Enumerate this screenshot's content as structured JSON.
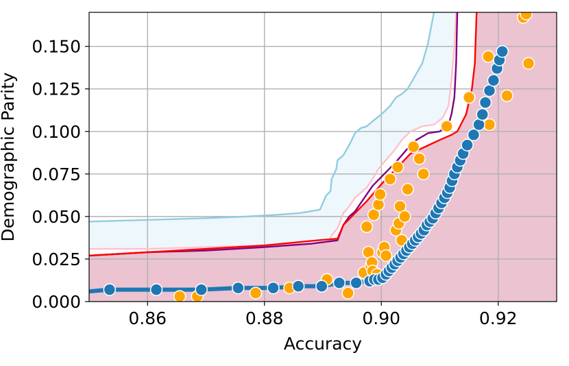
{
  "chart_data": {
    "type": "line",
    "title": "",
    "xlabel": "Accuracy",
    "ylabel": "Demographic Parity",
    "xlim": [
      0.85,
      0.93
    ],
    "ylim": [
      0.0,
      0.17
    ],
    "x_ticks": [
      0.86,
      0.88,
      0.9,
      0.92
    ],
    "x_tick_labels": [
      "0.86",
      "0.88",
      "0.90",
      "0.92"
    ],
    "y_ticks": [
      0.0,
      0.025,
      0.05,
      0.075,
      0.1,
      0.125,
      0.15
    ],
    "y_tick_labels": [
      "0.000",
      "0.025",
      "0.050",
      "0.075",
      "0.100",
      "0.125",
      "0.150"
    ],
    "grid": true,
    "legend": "none",
    "colors": {
      "pink_region": "#ebc3d1",
      "lightblue_region": "#eef7fb",
      "skyblue_line": "#8fcde0",
      "pink_line": "#ffc0cb",
      "purple_line": "#800080",
      "red_line": "#ff0000",
      "orange_points": "#ffa500",
      "blue_frontier": "#1f77b4"
    },
    "bands": [
      {
        "fill": "#eef7fb",
        "upper": [
          [
            0.85,
            0.047
          ],
          [
            0.86,
            0.048
          ],
          [
            0.87,
            0.049
          ],
          [
            0.877,
            0.05
          ],
          [
            0.882,
            0.051
          ],
          [
            0.886,
            0.052
          ],
          [
            0.8895,
            0.054
          ],
          [
            0.8905,
            0.062
          ],
          [
            0.8913,
            0.065
          ],
          [
            0.8915,
            0.072
          ],
          [
            0.8923,
            0.078
          ],
          [
            0.8925,
            0.083
          ],
          [
            0.8935,
            0.086
          ],
          [
            0.8945,
            0.092
          ],
          [
            0.8955,
            0.099
          ],
          [
            0.8965,
            0.102
          ],
          [
            0.8975,
            0.103
          ],
          [
            0.8985,
            0.106
          ],
          [
            0.9,
            0.11
          ],
          [
            0.9015,
            0.115
          ],
          [
            0.9025,
            0.12
          ],
          [
            0.9035,
            0.122
          ],
          [
            0.9045,
            0.125
          ],
          [
            0.9055,
            0.131
          ],
          [
            0.907,
            0.14
          ],
          [
            0.908,
            0.152
          ],
          [
            0.9085,
            0.161
          ],
          [
            0.909,
            0.17
          ]
        ],
        "lower": [
          [
            0.85,
            0.031
          ],
          [
            0.86,
            0.031
          ],
          [
            0.87,
            0.032
          ],
          [
            0.88,
            0.033
          ],
          [
            0.8885,
            0.034
          ],
          [
            0.891,
            0.035
          ],
          [
            0.8915,
            0.039
          ],
          [
            0.8925,
            0.043
          ],
          [
            0.8935,
            0.052
          ],
          [
            0.8945,
            0.056
          ],
          [
            0.8955,
            0.061
          ],
          [
            0.8965,
            0.064
          ],
          [
            0.8975,
            0.067
          ],
          [
            0.8985,
            0.072
          ],
          [
            0.8995,
            0.078
          ],
          [
            0.9005,
            0.082
          ],
          [
            0.9015,
            0.086
          ],
          [
            0.9025,
            0.09
          ],
          [
            0.9035,
            0.095
          ],
          [
            0.905,
            0.1
          ],
          [
            0.907,
            0.103
          ],
          [
            0.909,
            0.104
          ],
          [
            0.9105,
            0.108
          ],
          [
            0.9115,
            0.115
          ],
          [
            0.912,
            0.13
          ],
          [
            0.9125,
            0.15
          ],
          [
            0.9128,
            0.17
          ]
        ]
      }
    ],
    "series": [
      {
        "color": "#8fcde0",
        "style": "line",
        "points": [
          [
            0.85,
            0.047
          ],
          [
            0.86,
            0.048
          ],
          [
            0.87,
            0.049
          ],
          [
            0.877,
            0.05
          ],
          [
            0.882,
            0.051
          ],
          [
            0.886,
            0.052
          ],
          [
            0.8895,
            0.054
          ],
          [
            0.8905,
            0.062
          ],
          [
            0.8913,
            0.065
          ],
          [
            0.8915,
            0.072
          ],
          [
            0.8923,
            0.078
          ],
          [
            0.8925,
            0.083
          ],
          [
            0.8935,
            0.086
          ],
          [
            0.8945,
            0.092
          ],
          [
            0.8955,
            0.099
          ],
          [
            0.8965,
            0.102
          ],
          [
            0.8975,
            0.103
          ],
          [
            0.8985,
            0.106
          ],
          [
            0.9,
            0.11
          ],
          [
            0.9015,
            0.115
          ],
          [
            0.9025,
            0.12
          ],
          [
            0.9035,
            0.122
          ],
          [
            0.9045,
            0.125
          ],
          [
            0.9055,
            0.131
          ],
          [
            0.907,
            0.14
          ],
          [
            0.908,
            0.152
          ],
          [
            0.9085,
            0.161
          ],
          [
            0.909,
            0.17
          ]
        ]
      },
      {
        "color": "#ffc0cb",
        "style": "line",
        "points": [
          [
            0.85,
            0.031
          ],
          [
            0.86,
            0.031
          ],
          [
            0.87,
            0.032
          ],
          [
            0.88,
            0.033
          ],
          [
            0.8885,
            0.034
          ],
          [
            0.891,
            0.035
          ],
          [
            0.8915,
            0.039
          ],
          [
            0.8925,
            0.043
          ],
          [
            0.8935,
            0.052
          ],
          [
            0.8945,
            0.056
          ],
          [
            0.8955,
            0.061
          ],
          [
            0.8965,
            0.064
          ],
          [
            0.8975,
            0.067
          ],
          [
            0.8985,
            0.072
          ],
          [
            0.8995,
            0.078
          ],
          [
            0.9005,
            0.082
          ],
          [
            0.9015,
            0.086
          ],
          [
            0.9025,
            0.09
          ],
          [
            0.9035,
            0.095
          ],
          [
            0.905,
            0.1
          ],
          [
            0.907,
            0.103
          ],
          [
            0.909,
            0.104
          ],
          [
            0.9105,
            0.108
          ],
          [
            0.9115,
            0.115
          ],
          [
            0.912,
            0.13
          ],
          [
            0.9125,
            0.15
          ],
          [
            0.9128,
            0.17
          ]
        ]
      },
      {
        "color": "#800080",
        "style": "line",
        "points": [
          [
            0.85,
            0.027
          ],
          [
            0.86,
            0.029
          ],
          [
            0.87,
            0.03
          ],
          [
            0.88,
            0.032
          ],
          [
            0.888,
            0.034
          ],
          [
            0.8925,
            0.036
          ],
          [
            0.8935,
            0.045
          ],
          [
            0.8945,
            0.05
          ],
          [
            0.8955,
            0.053
          ],
          [
            0.8965,
            0.058
          ],
          [
            0.8985,
            0.068
          ],
          [
            0.9005,
            0.075
          ],
          [
            0.9025,
            0.082
          ],
          [
            0.9045,
            0.09
          ],
          [
            0.906,
            0.095
          ],
          [
            0.908,
            0.099
          ],
          [
            0.91,
            0.1
          ],
          [
            0.9115,
            0.104
          ],
          [
            0.912,
            0.11
          ],
          [
            0.9125,
            0.12
          ],
          [
            0.9128,
            0.14
          ],
          [
            0.913,
            0.17
          ]
        ]
      },
      {
        "color": "#ff0000",
        "style": "line",
        "points": [
          [
            0.85,
            0.027
          ],
          [
            0.86,
            0.029
          ],
          [
            0.87,
            0.031
          ],
          [
            0.88,
            0.033
          ],
          [
            0.889,
            0.036
          ],
          [
            0.8925,
            0.037
          ],
          [
            0.8935,
            0.045
          ],
          [
            0.8955,
            0.052
          ],
          [
            0.8975,
            0.059
          ],
          [
            0.9,
            0.069
          ],
          [
            0.9025,
            0.078
          ],
          [
            0.905,
            0.087
          ],
          [
            0.9075,
            0.091
          ],
          [
            0.91,
            0.095
          ],
          [
            0.912,
            0.098
          ],
          [
            0.913,
            0.1
          ],
          [
            0.9145,
            0.11
          ],
          [
            0.9155,
            0.125
          ],
          [
            0.916,
            0.14
          ],
          [
            0.9163,
            0.17
          ]
        ]
      },
      {
        "color": "#ffa500",
        "style": "scatter",
        "points": [
          [
            0.8655,
            0.003
          ],
          [
            0.8685,
            0.003
          ],
          [
            0.8785,
            0.005
          ],
          [
            0.8843,
            0.008
          ],
          [
            0.8907,
            0.013
          ],
          [
            0.8943,
            0.005
          ],
          [
            0.897,
            0.017
          ],
          [
            0.8975,
            0.044
          ],
          [
            0.8978,
            0.029
          ],
          [
            0.8982,
            0.021
          ],
          [
            0.8984,
            0.023
          ],
          [
            0.8985,
            0.018
          ],
          [
            0.8987,
            0.051
          ],
          [
            0.8993,
            0.016
          ],
          [
            0.8995,
            0.057
          ],
          [
            0.8998,
            0.063
          ],
          [
            0.9002,
            0.029
          ],
          [
            0.9005,
            0.032
          ],
          [
            0.9008,
            0.027
          ],
          [
            0.9015,
            0.072
          ],
          [
            0.9025,
            0.042
          ],
          [
            0.9028,
            0.079
          ],
          [
            0.903,
            0.046
          ],
          [
            0.9032,
            0.056
          ],
          [
            0.9035,
            0.036
          ],
          [
            0.904,
            0.05
          ],
          [
            0.9045,
            0.066
          ],
          [
            0.9055,
            0.091
          ],
          [
            0.9065,
            0.084
          ],
          [
            0.9072,
            0.075
          ],
          [
            0.9112,
            0.103
          ],
          [
            0.915,
            0.12
          ],
          [
            0.9183,
            0.144
          ],
          [
            0.9185,
            0.104
          ],
          [
            0.9215,
            0.121
          ],
          [
            0.9243,
            0.167
          ],
          [
            0.9248,
            0.169
          ],
          [
            0.9252,
            0.14
          ]
        ]
      },
      {
        "color": "#1f77b4",
        "style": "line-markers",
        "points": [
          [
            0.85,
            0.006
          ],
          [
            0.8535,
            0.007
          ],
          [
            0.8615,
            0.007
          ],
          [
            0.8692,
            0.007
          ],
          [
            0.8755,
            0.008
          ],
          [
            0.8815,
            0.008
          ],
          [
            0.8858,
            0.009
          ],
          [
            0.8898,
            0.009
          ],
          [
            0.8928,
            0.011
          ],
          [
            0.8957,
            0.011
          ],
          [
            0.898,
            0.012
          ],
          [
            0.8988,
            0.013
          ],
          [
            0.8995,
            0.013
          ],
          [
            0.9002,
            0.014
          ],
          [
            0.9008,
            0.016
          ],
          [
            0.9013,
            0.018
          ],
          [
            0.9018,
            0.02
          ],
          [
            0.9023,
            0.022
          ],
          [
            0.9028,
            0.024
          ],
          [
            0.9033,
            0.026
          ],
          [
            0.9038,
            0.028
          ],
          [
            0.9043,
            0.03
          ],
          [
            0.9048,
            0.032
          ],
          [
            0.9053,
            0.034
          ],
          [
            0.9058,
            0.036
          ],
          [
            0.9063,
            0.038
          ],
          [
            0.9068,
            0.04
          ],
          [
            0.9073,
            0.042
          ],
          [
            0.9078,
            0.045
          ],
          [
            0.9083,
            0.047
          ],
          [
            0.9088,
            0.049
          ],
          [
            0.9093,
            0.052
          ],
          [
            0.9098,
            0.055
          ],
          [
            0.9103,
            0.058
          ],
          [
            0.9108,
            0.061
          ],
          [
            0.9113,
            0.064
          ],
          [
            0.9117,
            0.067
          ],
          [
            0.9121,
            0.071
          ],
          [
            0.9125,
            0.075
          ],
          [
            0.913,
            0.079
          ],
          [
            0.9135,
            0.083
          ],
          [
            0.914,
            0.087
          ],
          [
            0.9147,
            0.092
          ],
          [
            0.9158,
            0.098
          ],
          [
            0.9167,
            0.104
          ],
          [
            0.9173,
            0.11
          ],
          [
            0.9178,
            0.117
          ],
          [
            0.9185,
            0.124
          ],
          [
            0.9192,
            0.13
          ],
          [
            0.9198,
            0.137
          ],
          [
            0.9202,
            0.142
          ],
          [
            0.9207,
            0.147
          ]
        ]
      }
    ]
  }
}
